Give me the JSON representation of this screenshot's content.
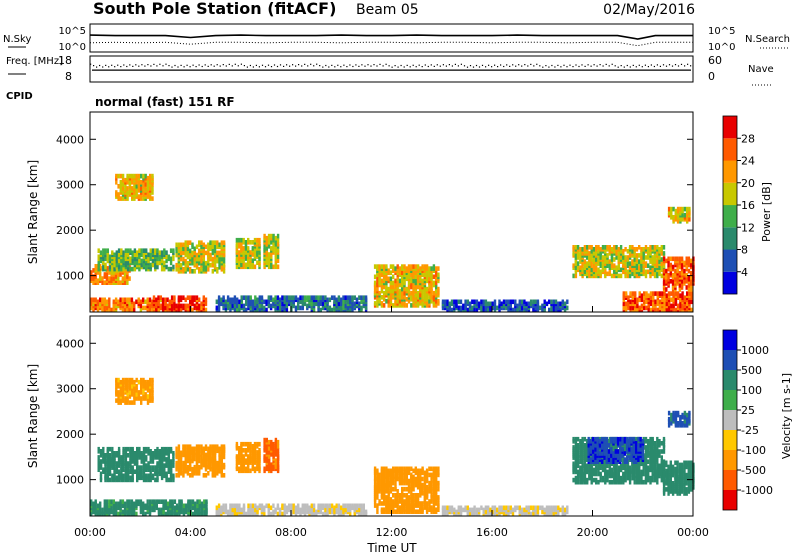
{
  "header": {
    "station": "South Pole Station (fitACF)",
    "beam": "Beam 05",
    "date": "02/May/2016"
  },
  "chart_data": [
    {
      "type": "line",
      "panel": "noise",
      "left_label": "N.Sky",
      "right_label": "N.Search",
      "left_ticks": [
        "10^5",
        "10^0"
      ],
      "right_ticks": [
        "10^5",
        "10^0"
      ],
      "series": [
        {
          "name": "N.Sky",
          "style": "solid",
          "x": [
            0,
            1,
            2,
            3,
            4,
            5,
            6,
            7,
            8,
            9,
            10,
            11,
            12,
            13,
            14,
            15,
            16,
            17,
            18,
            19,
            20,
            21,
            21.8,
            22.5,
            23,
            24
          ],
          "y": [
            3.1,
            3.0,
            3.0,
            3.0,
            2.6,
            3.0,
            3.1,
            3.0,
            3.0,
            3.0,
            3.1,
            3.0,
            3.0,
            3.1,
            3.0,
            3.0,
            3.0,
            3.1,
            3.0,
            3.0,
            3.0,
            3.0,
            2.3,
            3.0,
            3.0,
            3.0
          ]
        },
        {
          "name": "N.Search",
          "style": "dotted",
          "x": [
            0,
            1,
            2,
            3,
            4,
            5,
            6,
            7,
            8,
            9,
            10,
            11,
            12,
            13,
            14,
            15,
            16,
            17,
            18,
            19,
            20,
            21,
            21.8,
            22.5,
            23,
            24
          ],
          "y": [
            1.5,
            1.6,
            1.5,
            1.6,
            1.2,
            1.6,
            1.6,
            1.5,
            1.6,
            1.6,
            1.5,
            1.6,
            1.6,
            1.5,
            1.6,
            1.6,
            1.5,
            1.6,
            1.6,
            1.5,
            1.6,
            1.6,
            0.9,
            1.6,
            1.6,
            1.6
          ]
        }
      ]
    },
    {
      "type": "scatter",
      "panel": "freq-nave",
      "left_label": "Freq. [MHz]",
      "right_label": "Nave",
      "left_ticks": [
        "18",
        "8"
      ],
      "right_ticks": [
        "60",
        "0"
      ],
      "freq_mhz": 12.5,
      "nave": 42
    },
    {
      "type": "table",
      "panel": "cpid",
      "label": "CPID",
      "text": "normal (fast) 151 RF"
    },
    {
      "type": "heatmap",
      "panel": "power",
      "ylabel": "Slant Range [km]",
      "yticks": [
        "4000",
        "3000",
        "2000",
        "1000"
      ],
      "ylim": [
        200,
        4600
      ],
      "xlim": [
        0,
        24
      ],
      "colorbar_label": "Power [dB]",
      "colorbar_ticks": [
        "28",
        "24",
        "20",
        "16",
        "12",
        "8",
        "4"
      ],
      "colorbar_colors": [
        "#0000e0",
        "#1e4fb4",
        "#2a8a6c",
        "#3fae4a",
        "#c8c800",
        "#ff9800",
        "#ff5a00",
        "#e80000"
      ],
      "regions": [
        {
          "t": [
            0.0,
            3.0
          ],
          "r": [
            250,
            500
          ],
          "v": 24
        },
        {
          "t": [
            2.5,
            4.6
          ],
          "r": [
            250,
            550
          ],
          "v": 28
        },
        {
          "t": [
            0.0,
            1.6
          ],
          "r": [
            850,
            1250
          ],
          "v": 22
        },
        {
          "t": [
            0.3,
            3.3
          ],
          "r": [
            1150,
            1600
          ],
          "v": 14
        },
        {
          "t": [
            1.0,
            2.5
          ],
          "r": [
            2700,
            3200
          ],
          "v": 20
        },
        {
          "t": [
            3.4,
            5.3
          ],
          "r": [
            1100,
            1750
          ],
          "v": 18
        },
        {
          "t": [
            5.8,
            6.7
          ],
          "r": [
            1200,
            1800
          ],
          "v": 18
        },
        {
          "t": [
            6.9,
            7.5
          ],
          "r": [
            1200,
            1900
          ],
          "v": 18
        },
        {
          "t": [
            5.0,
            11.0
          ],
          "r": [
            250,
            550
          ],
          "v": 8
        },
        {
          "t": [
            11.3,
            13.9
          ],
          "r": [
            350,
            1250
          ],
          "v": 20
        },
        {
          "t": [
            14.0,
            19.0
          ],
          "r": [
            250,
            450
          ],
          "v": 6
        },
        {
          "t": [
            19.2,
            22.8
          ],
          "r": [
            1000,
            1650
          ],
          "v": 18
        },
        {
          "t": [
            21.2,
            23.9
          ],
          "r": [
            250,
            650
          ],
          "v": 26
        },
        {
          "t": [
            22.8,
            24.0
          ],
          "r": [
            700,
            1400
          ],
          "v": 26
        },
        {
          "t": [
            23.0,
            23.9
          ],
          "r": [
            2200,
            2500
          ],
          "v": 20
        }
      ]
    },
    {
      "type": "heatmap",
      "panel": "velocity",
      "ylabel": "Slant Range [km]",
      "yticks": [
        "4000",
        "3000",
        "2000",
        "1000"
      ],
      "ylim": [
        200,
        4600
      ],
      "xlim": [
        0,
        24
      ],
      "xticks": [
        "00:00",
        "04:00",
        "08:00",
        "12:00",
        "16:00",
        "20:00",
        "00:00"
      ],
      "xlabel": "Time UT",
      "colorbar_label": "Velocity [m s-1]",
      "colorbar_ticks": [
        "1000",
        "500",
        "100",
        "25",
        "-25",
        "-100",
        "-500",
        "-1000"
      ],
      "colorbar_colors": [
        "#e80000",
        "#ff5a00",
        "#ff9800",
        "#ffc800",
        "#bebebe",
        "#3fae4a",
        "#2a8a6c",
        "#1e4fb4",
        "#0000e0"
      ],
      "regions": [
        {
          "t": [
            0.0,
            4.6
          ],
          "r": [
            250,
            550
          ],
          "v": 150
        },
        {
          "t": [
            0.3,
            3.3
          ],
          "r": [
            1000,
            1700
          ],
          "v": 300
        },
        {
          "t": [
            1.0,
            2.5
          ],
          "r": [
            2700,
            3200
          ],
          "v": -150
        },
        {
          "t": [
            3.4,
            5.3
          ],
          "r": [
            1100,
            1750
          ],
          "v": -250
        },
        {
          "t": [
            5.8,
            6.7
          ],
          "r": [
            1200,
            1800
          ],
          "v": -300
        },
        {
          "t": [
            6.9,
            7.5
          ],
          "r": [
            1200,
            1900
          ],
          "v": -700
        },
        {
          "t": [
            5.0,
            11.0
          ],
          "r": [
            250,
            450
          ],
          "v": -10
        },
        {
          "t": [
            11.3,
            13.9
          ],
          "r": [
            300,
            1250
          ],
          "v": -250
        },
        {
          "t": [
            14.0,
            19.0
          ],
          "r": [
            250,
            400
          ],
          "v": -10
        },
        {
          "t": [
            19.2,
            22.8
          ],
          "r": [
            950,
            1900
          ],
          "v": 300
        },
        {
          "t": [
            19.8,
            22.0
          ],
          "r": [
            1400,
            1900
          ],
          "v": 900
        },
        {
          "t": [
            22.8,
            24.0
          ],
          "r": [
            700,
            1400
          ],
          "v": 250
        },
        {
          "t": [
            23.0,
            23.9
          ],
          "r": [
            2200,
            2500
          ],
          "v": 700
        }
      ]
    }
  ]
}
